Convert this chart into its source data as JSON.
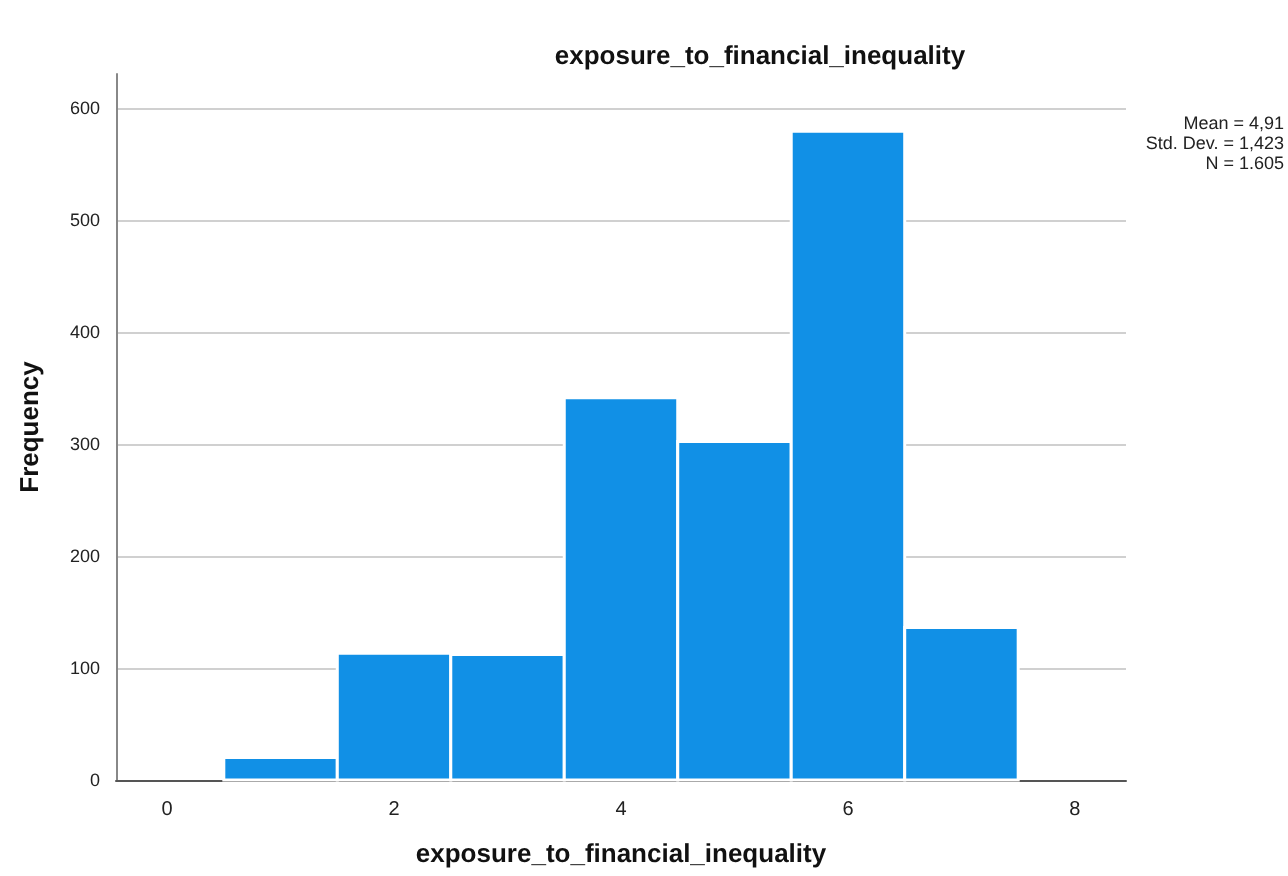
{
  "chart_data": {
    "type": "histogram",
    "title": "exposure_to_financial_inequality",
    "xlabel": "exposure_to_financial_inequality",
    "ylabel": "Frequency",
    "bins": [
      0.5,
      1.5,
      2.5,
      3.5,
      4.5,
      5.5,
      6.5,
      7.5
    ],
    "values": [
      20,
      113,
      112,
      341,
      302,
      579,
      136
    ],
    "color": "#1190e6",
    "xlim": [
      -0.45,
      8.45
    ],
    "xticks": [
      0,
      2,
      4,
      6,
      8
    ],
    "ylim": [
      0,
      630
    ],
    "yticks": [
      0,
      100,
      200,
      300,
      400,
      500,
      600
    ],
    "grid": "y",
    "annotations": [
      "Mean = 4,91",
      "Std. Dev. = 1,423",
      "N = 1.605"
    ]
  }
}
